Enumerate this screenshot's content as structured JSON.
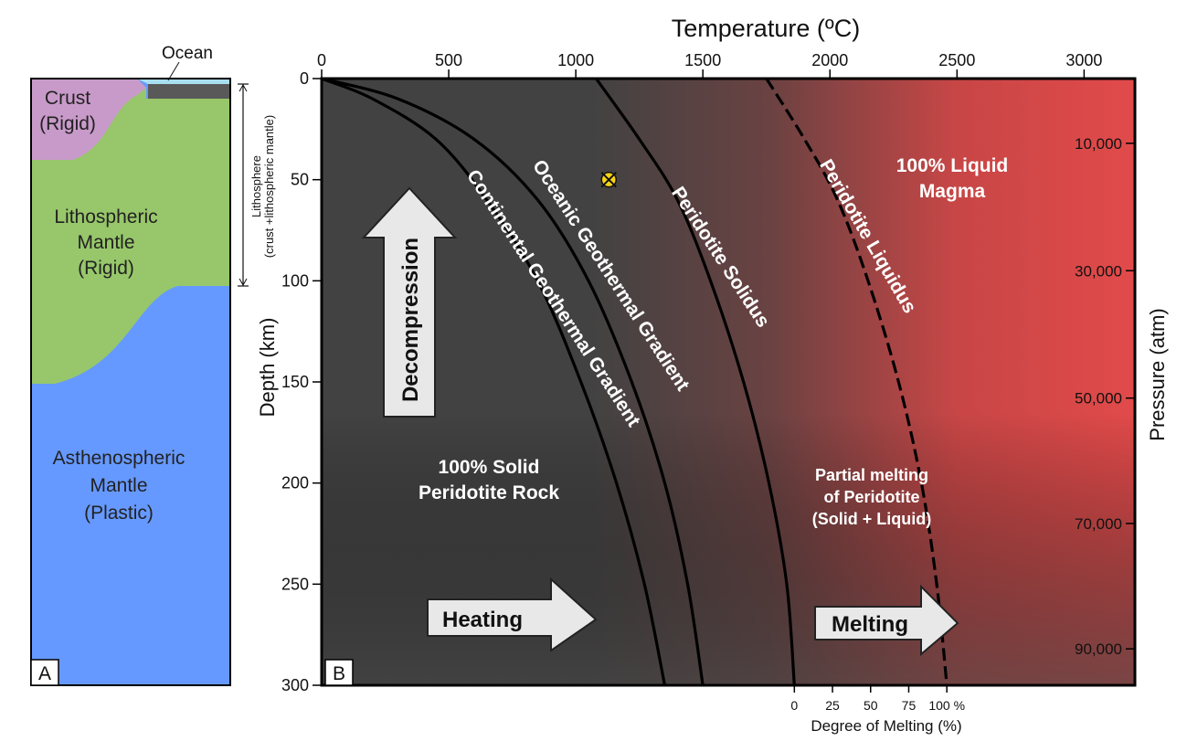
{
  "panel_a": {
    "letter": "A",
    "ocean": "Ocean",
    "crust": [
      "Crust",
      "(Rigid)"
    ],
    "lith_mantle": [
      "Lithospheric",
      "Mantle",
      "(Rigid)"
    ],
    "asthen": [
      "Asthenospheric",
      "Mantle",
      "(Plastic)"
    ],
    "bracket": [
      "Lithosphere",
      "(crust +lithospheric mantle)"
    ],
    "colors": {
      "crust": "#c89ac9",
      "lith": "#97c76a",
      "asthen": "#6699ff",
      "ocean": "#a8dff0",
      "oceanic_crust": "#595959"
    }
  },
  "panel_b": {
    "letter": "B",
    "regions": {
      "solid": [
        "100% Solid",
        "Peridotite Rock"
      ],
      "partial": [
        "Partial melting",
        "of Peridotite",
        "(Solid + Liquid)"
      ],
      "liquid": [
        "100% Liquid",
        "Magma"
      ]
    },
    "arrows": {
      "decompression": "Decompression",
      "heating": "Heating",
      "melting": "Melting"
    },
    "colors": {
      "solid": "#424242",
      "liquid": "#e24a4a",
      "arrow_fill": "#e8e8e8"
    }
  },
  "chart_data": {
    "type": "line",
    "title": "",
    "top_axis": {
      "label": "Temperature (ºC)",
      "ticks": [
        "0",
        "500",
        "1000",
        "1500",
        "2000",
        "2500",
        "3000"
      ],
      "range": [
        0,
        3200
      ]
    },
    "left_axis": {
      "label": "Depth (km)",
      "ticks": [
        "0",
        "50",
        "100",
        "150",
        "200",
        "250",
        "300"
      ],
      "range": [
        0,
        300
      ],
      "inverted": true
    },
    "right_axis": {
      "label": "Pressure (atm)",
      "ticks": [
        "10,000",
        "30,000",
        "50,000",
        "70,000",
        "90,000"
      ]
    },
    "bottom_axis": {
      "label": "Degree of Melting (%)",
      "ticks": [
        "0",
        "25",
        "50",
        "75",
        "100 %"
      ]
    },
    "series": [
      {
        "name": "Continental Geothermal Gradient",
        "style": "solid",
        "points": [
          [
            0,
            0
          ],
          [
            200,
            10
          ],
          [
            450,
            30
          ],
          [
            650,
            60
          ],
          [
            850,
            100
          ],
          [
            1020,
            150
          ],
          [
            1160,
            200
          ],
          [
            1270,
            250
          ],
          [
            1350,
            300
          ]
        ]
      },
      {
        "name": "Oceanic Geothermal Gradient",
        "style": "solid",
        "points": [
          [
            0,
            0
          ],
          [
            300,
            10
          ],
          [
            600,
            30
          ],
          [
            850,
            60
          ],
          [
            1050,
            100
          ],
          [
            1220,
            150
          ],
          [
            1350,
            200
          ],
          [
            1440,
            250
          ],
          [
            1500,
            300
          ]
        ]
      },
      {
        "name": "Peridotite Solidus",
        "style": "solid",
        "points": [
          [
            1080,
            0
          ],
          [
            1250,
            30
          ],
          [
            1400,
            60
          ],
          [
            1530,
            100
          ],
          [
            1660,
            150
          ],
          [
            1760,
            200
          ],
          [
            1830,
            250
          ],
          [
            1860,
            300
          ]
        ]
      },
      {
        "name": "Peridotite Liquidus",
        "style": "dashed",
        "points": [
          [
            1750,
            0
          ],
          [
            1900,
            30
          ],
          [
            2030,
            60
          ],
          [
            2150,
            100
          ],
          [
            2270,
            150
          ],
          [
            2360,
            200
          ],
          [
            2420,
            250
          ],
          [
            2460,
            300
          ]
        ]
      }
    ],
    "marker": {
      "temperature": 1130,
      "depth": 50
    }
  }
}
